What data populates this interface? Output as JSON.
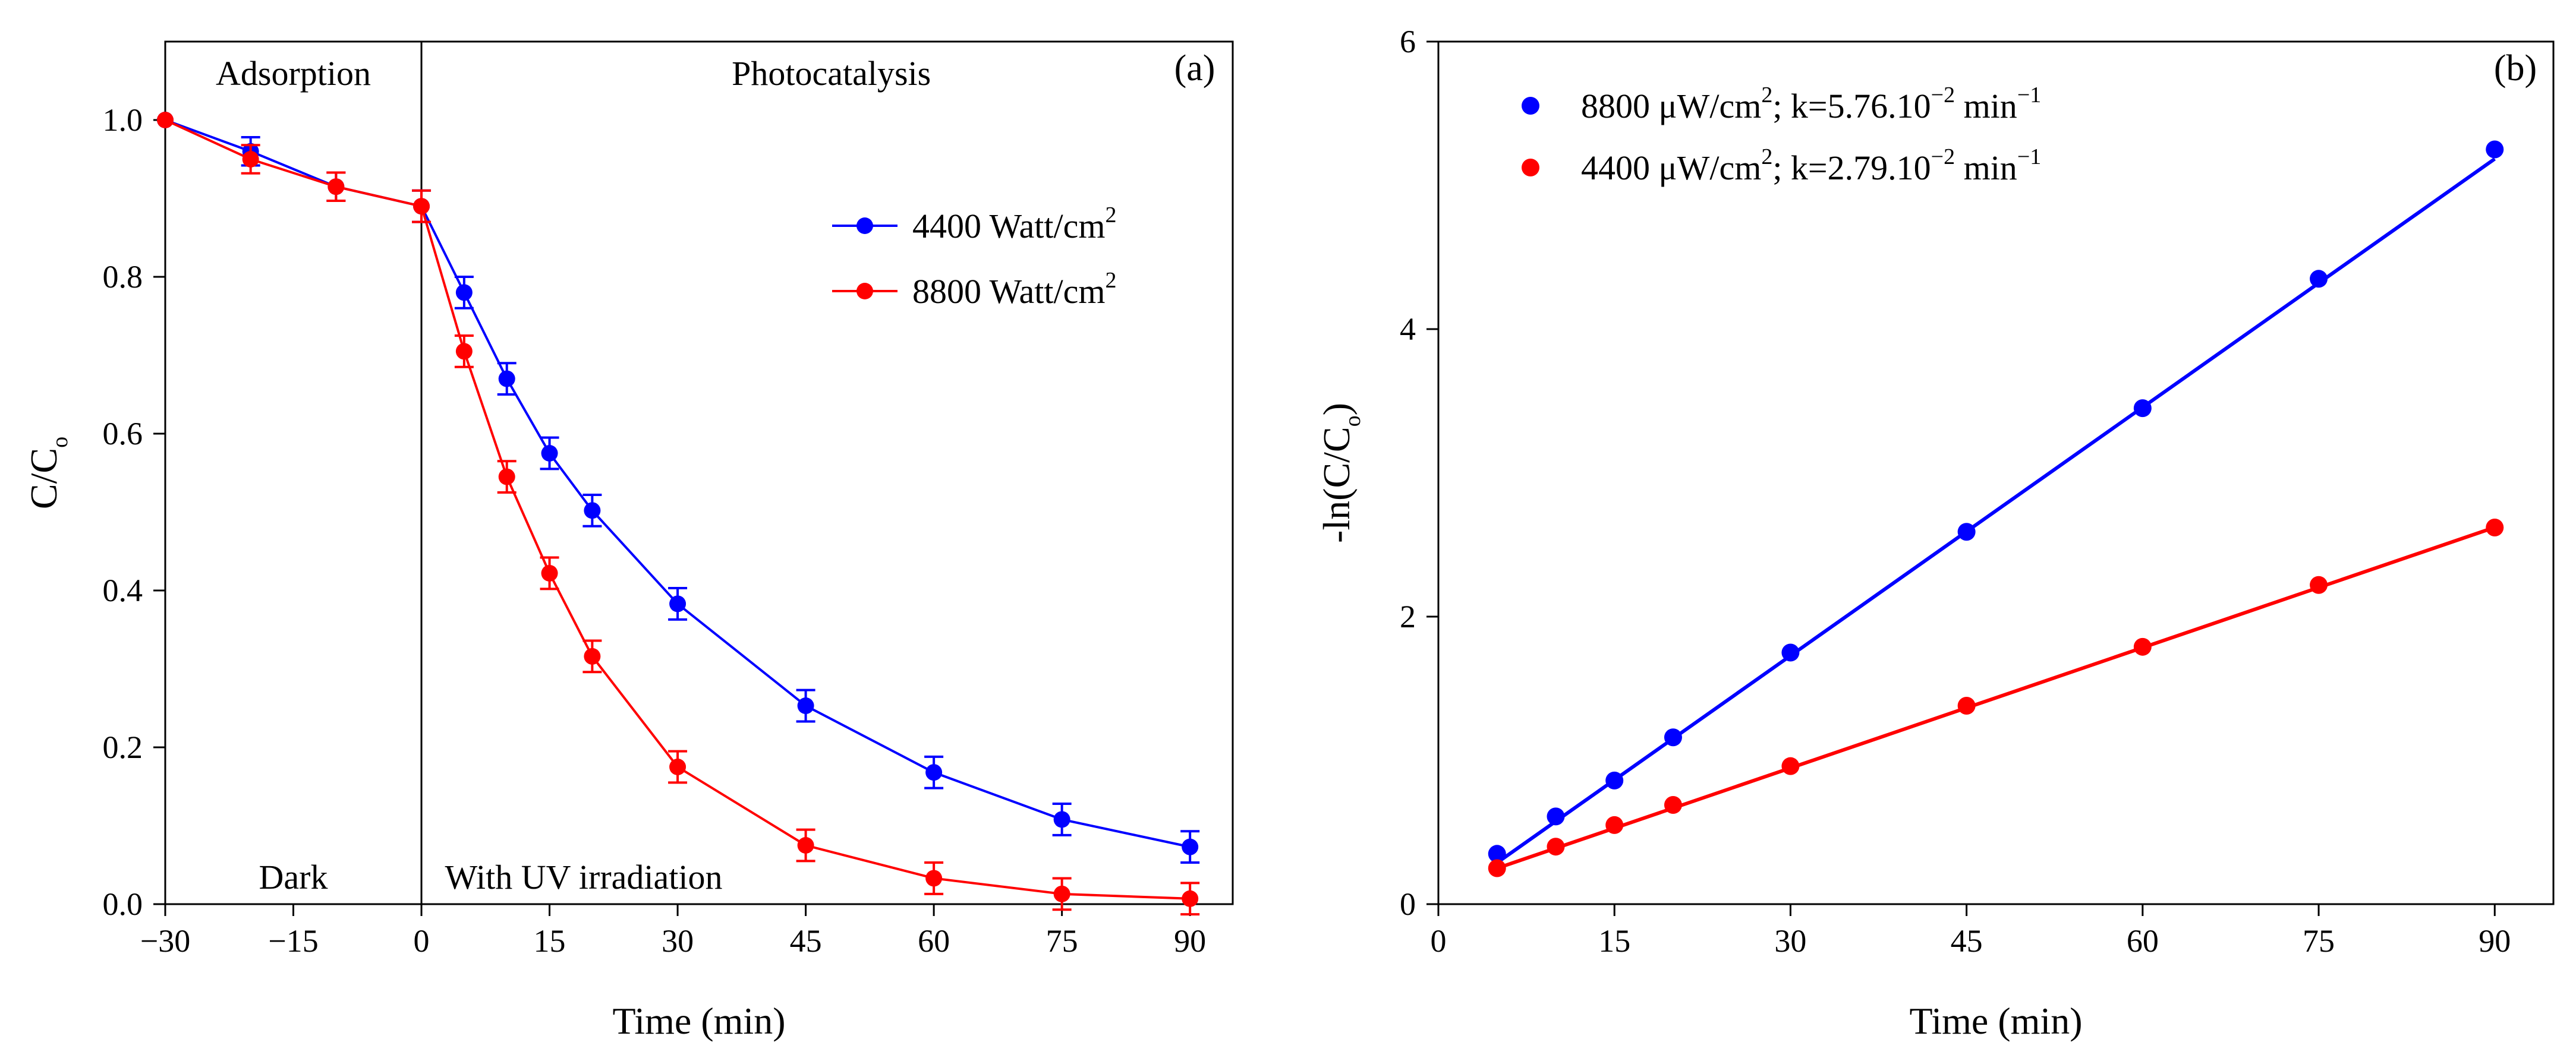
{
  "chart_data": [
    {
      "panel": "(a)",
      "type": "line",
      "xlabel": "Time (min)",
      "ylabel": "C/C",
      "ylabel_sub": "o",
      "xlim": [
        -30,
        95
      ],
      "ylim": [
        0,
        1.1
      ],
      "xticks": [
        -30,
        -15,
        0,
        15,
        30,
        45,
        60,
        75,
        90
      ],
      "xtick_labels": [
        "−30",
        "−15",
        "0",
        "15",
        "30",
        "45",
        "60",
        "75",
        "90"
      ],
      "yticks": [
        0.0,
        0.2,
        0.4,
        0.6,
        0.8,
        1.0
      ],
      "ytick_labels": [
        "0.0",
        "0.2",
        "0.4",
        "0.6",
        "0.8",
        "1.0"
      ],
      "divider_x": 0,
      "annotations": [
        {
          "text": "Adsorption",
          "x": -15,
          "y": 1.06
        },
        {
          "text": "Photocatalysis",
          "x": 48,
          "y": 1.06
        },
        {
          "text": "Dark",
          "x": -15,
          "y": 0.035
        },
        {
          "text": "With UV irradiation",
          "x": 19,
          "y": 0.035
        }
      ],
      "legend": {
        "position": "top-right"
      },
      "series": [
        {
          "name": "4400 Watt/cm",
          "name_sup": "2",
          "color": "#0000ff",
          "x": [
            -30,
            -20,
            -10,
            0,
            5,
            10,
            15,
            20,
            30,
            45,
            60,
            75,
            90
          ],
          "y": [
            1.0,
            0.96,
            0.915,
            0.89,
            0.78,
            0.67,
            0.575,
            0.502,
            0.383,
            0.253,
            0.168,
            0.108,
            0.073
          ],
          "err": [
            0,
            0.018,
            0.018,
            0.02,
            0.02,
            0.02,
            0.02,
            0.02,
            0.02,
            0.02,
            0.02,
            0.02,
            0.02
          ]
        },
        {
          "name": "8800 Watt/cm",
          "name_sup": "2",
          "color": "#ff0000",
          "x": [
            -30,
            -20,
            -10,
            0,
            5,
            10,
            15,
            20,
            30,
            45,
            60,
            75,
            90
          ],
          "y": [
            1.0,
            0.95,
            0.915,
            0.89,
            0.705,
            0.545,
            0.422,
            0.316,
            0.175,
            0.075,
            0.033,
            0.013,
            0.007
          ],
          "err": [
            0,
            0.018,
            0.018,
            0.02,
            0.02,
            0.02,
            0.02,
            0.02,
            0.02,
            0.02,
            0.02,
            0.02,
            0.02
          ]
        }
      ]
    },
    {
      "panel": "(b)",
      "type": "scatter",
      "xlabel": "Time (min)",
      "ylabel": "-ln(C/C",
      "ylabel_sub": "o",
      "ylabel_end": ")",
      "xlim": [
        0,
        95
      ],
      "ylim": [
        0,
        6
      ],
      "xticks": [
        0,
        15,
        30,
        45,
        60,
        75,
        90
      ],
      "xtick_labels": [
        "0",
        "15",
        "30",
        "45",
        "60",
        "75",
        "90"
      ],
      "yticks": [
        0,
        2,
        4,
        6
      ],
      "ytick_labels": [
        "0",
        "2",
        "4",
        "6"
      ],
      "legend": {
        "position": "top-left"
      },
      "series": [
        {
          "label_text": "8800 μW/cm",
          "label_sup": "2",
          "label_mid": "; k=5.76.10",
          "label_exp": "−2",
          "label_unit": " min",
          "label_unit_exp": "−1",
          "marker_color": "#0000ff",
          "fit_color": "#0000ff",
          "fit": {
            "slope": 0.0576,
            "intercept": 0.0
          },
          "x": [
            5,
            10,
            15,
            20,
            30,
            45,
            60,
            75,
            90
          ],
          "y": [
            0.35,
            0.61,
            0.86,
            1.16,
            1.75,
            2.59,
            3.45,
            4.35,
            5.25
          ]
        },
        {
          "label_text": "4400 μW/cm",
          "label_sup": "2",
          "label_mid": "; k=2.79.10",
          "label_exp": "−2",
          "label_unit": " min",
          "label_unit_exp": "−1",
          "marker_color": "#ff0000",
          "fit_color": "#ff0000",
          "fit": {
            "slope": 0.0279,
            "intercept": 0.11
          },
          "x": [
            5,
            10,
            15,
            20,
            30,
            45,
            60,
            75,
            90
          ],
          "y": [
            0.25,
            0.4,
            0.55,
            0.69,
            0.96,
            1.38,
            1.79,
            2.22,
            2.62
          ]
        }
      ]
    }
  ]
}
